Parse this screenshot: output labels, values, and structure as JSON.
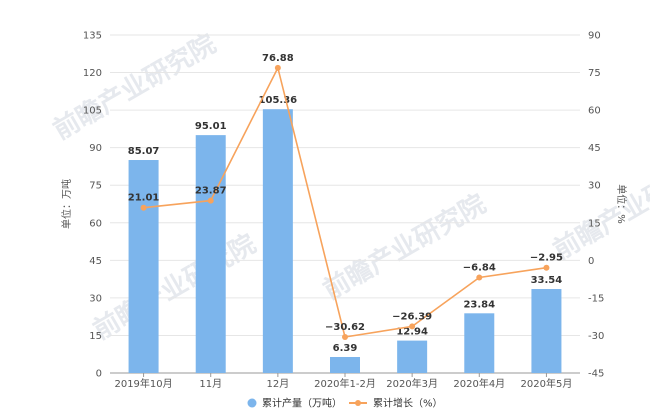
{
  "chart_data": {
    "type": "bar",
    "categories": [
      "2019年10月",
      "11月",
      "12月",
      "2020年1-2月",
      "2020年3月",
      "2020年4月",
      "2020年5月"
    ],
    "series": [
      {
        "name": "累计产量（万吨）",
        "type": "bar",
        "axis": "left",
        "color": "#7cb5ec",
        "values": [
          85.07,
          95.01,
          105.36,
          6.39,
          12.94,
          23.84,
          33.54
        ]
      },
      {
        "name": "累计增长（%）",
        "type": "line",
        "axis": "right",
        "color": "#f7a35c",
        "values": [
          21.01,
          23.87,
          76.88,
          -30.62,
          -26.39,
          -6.84,
          -2.95
        ]
      }
    ],
    "y_left": {
      "label": "单位：万吨",
      "min": 0,
      "max": 135,
      "ticks": [
        0,
        15,
        30,
        45,
        60,
        75,
        90,
        105,
        120,
        135
      ]
    },
    "y_right": {
      "label": "单位：%",
      "min": -45,
      "max": 90,
      "ticks": [
        -45,
        -30,
        -15,
        0,
        15,
        30,
        45,
        60,
        75,
        90
      ]
    },
    "grid": true,
    "legend": "bottom-center",
    "watermark": "前瞻产业研究院"
  }
}
